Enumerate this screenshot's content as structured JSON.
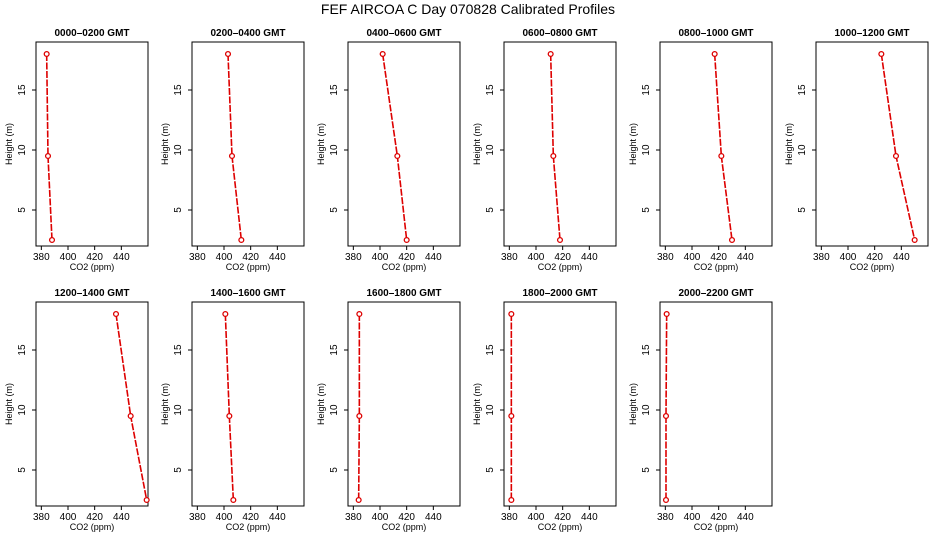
{
  "title": "FEF AIRCOA C  Day 070828  Calibrated Profiles",
  "colors": {
    "profile": "#dd0000",
    "axis": "#000000"
  },
  "chart_data": [
    {
      "type": "line",
      "title": "0000–0200 GMT",
      "xlabel": "CO2 (ppm)",
      "ylabel": "Height (m)",
      "xlim": [
        376,
        460
      ],
      "ylim": [
        2,
        19
      ],
      "xticks": [
        380,
        400,
        420,
        440
      ],
      "yticks": [
        5,
        10,
        15
      ],
      "series": [
        {
          "values": [
            {
              "x": 384,
              "y": 18
            },
            {
              "x": 385,
              "y": 9.5
            },
            {
              "x": 388,
              "y": 2.5
            }
          ]
        }
      ]
    },
    {
      "type": "line",
      "title": "0200–0400 GMT",
      "xlabel": "CO2 (ppm)",
      "ylabel": "Height (m)",
      "xlim": [
        376,
        460
      ],
      "ylim": [
        2,
        19
      ],
      "xticks": [
        380,
        400,
        420,
        440
      ],
      "yticks": [
        5,
        10,
        15
      ],
      "series": [
        {
          "values": [
            {
              "x": 403,
              "y": 18
            },
            {
              "x": 406,
              "y": 9.5
            },
            {
              "x": 413,
              "y": 2.5
            }
          ]
        }
      ]
    },
    {
      "type": "line",
      "title": "0400–0600 GMT",
      "xlabel": "CO2 (ppm)",
      "ylabel": "Height (m)",
      "xlim": [
        376,
        460
      ],
      "ylim": [
        2,
        19
      ],
      "xticks": [
        380,
        400,
        420,
        440
      ],
      "yticks": [
        5,
        10,
        15
      ],
      "series": [
        {
          "values": [
            {
              "x": 402,
              "y": 18
            },
            {
              "x": 413,
              "y": 9.5
            },
            {
              "x": 420,
              "y": 2.5
            }
          ]
        }
      ]
    },
    {
      "type": "line",
      "title": "0600–0800 GMT",
      "xlabel": "CO2 (ppm)",
      "ylabel": "Height (m)",
      "xlim": [
        376,
        460
      ],
      "ylim": [
        2,
        19
      ],
      "xticks": [
        380,
        400,
        420,
        440
      ],
      "yticks": [
        5,
        10,
        15
      ],
      "series": [
        {
          "values": [
            {
              "x": 411,
              "y": 18
            },
            {
              "x": 413,
              "y": 9.5
            },
            {
              "x": 418,
              "y": 2.5
            }
          ]
        }
      ]
    },
    {
      "type": "line",
      "title": "0800–1000 GMT",
      "xlabel": "CO2 (ppm)",
      "ylabel": "Height (m)",
      "xlim": [
        376,
        460
      ],
      "ylim": [
        2,
        19
      ],
      "xticks": [
        380,
        400,
        420,
        440
      ],
      "yticks": [
        5,
        10,
        15
      ],
      "series": [
        {
          "values": [
            {
              "x": 417,
              "y": 18
            },
            {
              "x": 422,
              "y": 9.5
            },
            {
              "x": 430,
              "y": 2.5
            }
          ]
        }
      ]
    },
    {
      "type": "line",
      "title": "1000–1200 GMT",
      "xlabel": "CO2 (ppm)",
      "ylabel": "Height (m)",
      "xlim": [
        376,
        460
      ],
      "ylim": [
        2,
        19
      ],
      "xticks": [
        380,
        400,
        420,
        440
      ],
      "yticks": [
        5,
        10,
        15
      ],
      "series": [
        {
          "values": [
            {
              "x": 425,
              "y": 18
            },
            {
              "x": 436,
              "y": 9.5
            },
            {
              "x": 450,
              "y": 2.5
            }
          ]
        }
      ]
    },
    {
      "type": "line",
      "title": "1200–1400 GMT",
      "xlabel": "CO2 (ppm)",
      "ylabel": "Height (m)",
      "xlim": [
        376,
        460
      ],
      "ylim": [
        2,
        19
      ],
      "xticks": [
        380,
        400,
        420,
        440
      ],
      "yticks": [
        5,
        10,
        15
      ],
      "series": [
        {
          "values": [
            {
              "x": 436,
              "y": 18
            },
            {
              "x": 447,
              "y": 9.5
            },
            {
              "x": 459,
              "y": 2.5
            }
          ]
        }
      ]
    },
    {
      "type": "line",
      "title": "1400–1600 GMT",
      "xlabel": "CO2 (ppm)",
      "ylabel": "Height (m)",
      "xlim": [
        376,
        460
      ],
      "ylim": [
        2,
        19
      ],
      "xticks": [
        380,
        400,
        420,
        440
      ],
      "yticks": [
        5,
        10,
        15
      ],
      "series": [
        {
          "values": [
            {
              "x": 401,
              "y": 18
            },
            {
              "x": 404,
              "y": 9.5
            },
            {
              "x": 407,
              "y": 2.5
            }
          ]
        }
      ]
    },
    {
      "type": "line",
      "title": "1600–1800 GMT",
      "xlabel": "CO2 (ppm)",
      "ylabel": "Height (m)",
      "xlim": [
        376,
        460
      ],
      "ylim": [
        2,
        19
      ],
      "xticks": [
        380,
        400,
        420,
        440
      ],
      "yticks": [
        5,
        10,
        15
      ],
      "series": [
        {
          "values": [
            {
              "x": 384.5,
              "y": 18
            },
            {
              "x": 384.5,
              "y": 9.5
            },
            {
              "x": 384,
              "y": 2.5
            }
          ]
        }
      ]
    },
    {
      "type": "line",
      "title": "1800–2000 GMT",
      "xlabel": "CO2 (ppm)",
      "ylabel": "Height (m)",
      "xlim": [
        376,
        460
      ],
      "ylim": [
        2,
        19
      ],
      "xticks": [
        380,
        400,
        420,
        440
      ],
      "yticks": [
        5,
        10,
        15
      ],
      "series": [
        {
          "values": [
            {
              "x": 381.5,
              "y": 18
            },
            {
              "x": 381.5,
              "y": 9.5
            },
            {
              "x": 381.5,
              "y": 2.5
            }
          ]
        }
      ]
    },
    {
      "type": "line",
      "title": "2000–2200 GMT",
      "xlabel": "CO2 (ppm)",
      "ylabel": "Height (m)",
      "xlim": [
        376,
        460
      ],
      "ylim": [
        2,
        19
      ],
      "xticks": [
        380,
        400,
        420,
        440
      ],
      "yticks": [
        5,
        10,
        15
      ],
      "series": [
        {
          "values": [
            {
              "x": 381,
              "y": 18
            },
            {
              "x": 380.5,
              "y": 9.5
            },
            {
              "x": 380.5,
              "y": 2.5
            }
          ]
        }
      ]
    }
  ]
}
